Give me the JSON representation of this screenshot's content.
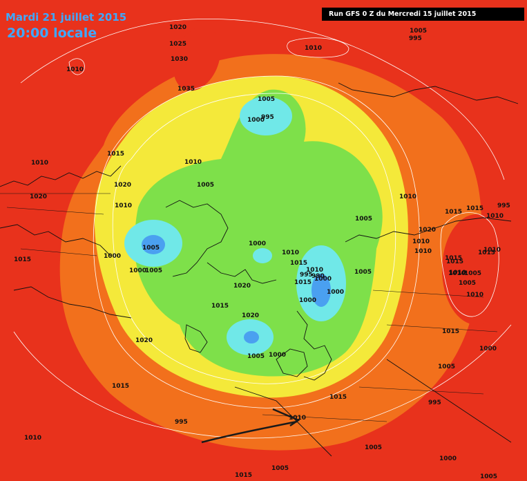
{
  "header": {
    "date": "Mardi 21 juillet 2015",
    "time": "20:00 locale",
    "run": "Run GFS 0 Z du Mercredi 15 juillet 2015"
  },
  "colors": {
    "background": "#e8321c",
    "orange": "#f2701c",
    "yellow": "#f4e93a",
    "green": "#7ee04a",
    "cyan": "#70e8e8",
    "blue": "#4aa0f0",
    "title_blue": "#3fa8ff",
    "isobar": "#ffffff",
    "coastline": "#111111"
  },
  "pressure_labels": [
    "1020",
    "1025",
    "1030",
    "1035",
    "1010",
    "1005",
    "995",
    "1005",
    "1000",
    "995",
    "1010",
    "1015",
    "1010",
    "1010",
    "1020",
    "1005",
    "1020",
    "1010",
    "1010",
    "1005",
    "1015",
    "1015",
    "1010",
    "995",
    "1020",
    "1010",
    "1000",
    "1005",
    "1000",
    "1005",
    "1000",
    "1010",
    "1015",
    "1010",
    "1005",
    "1015",
    "1015",
    "1010",
    "1020",
    "1015",
    "1005",
    "1000",
    "1020",
    "1015",
    "1005",
    "1000",
    "995",
    "1015",
    "1015",
    "1005",
    "1010",
    "1010",
    "1005",
    "1000",
    "995",
    "1005",
    "1005",
    "1000",
    "1005",
    "1010",
    "1010",
    "1015",
    "1010",
    "1015",
    "1015",
    "1015",
    "1000",
    "990",
    "1000",
    "995",
    "1020",
    "1010"
  ]
}
